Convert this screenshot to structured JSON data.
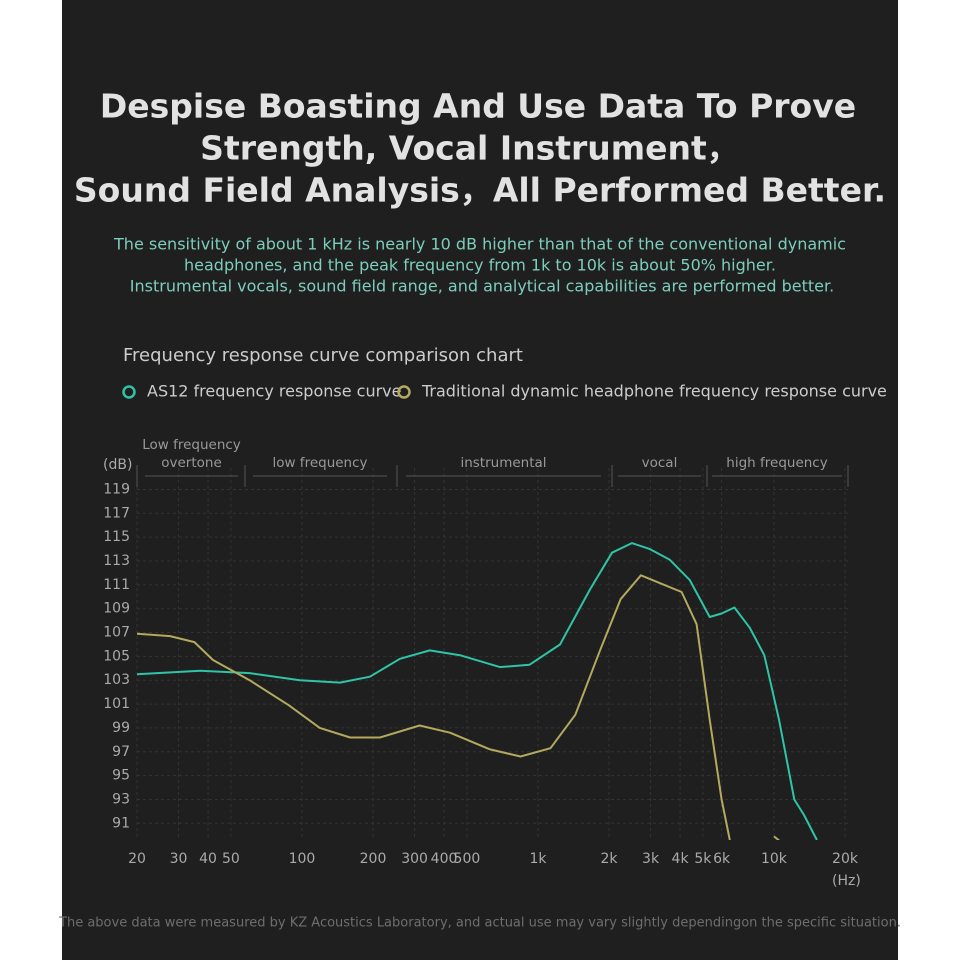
{
  "chart_data": {
    "type": "line",
    "title": [
      "Despise Boasting And Use Data To Prove",
      "Strength, Vocal Instrument，",
      "Sound Field Analysis，All Performed Better."
    ],
    "subtitle": [
      "The sensitivity of about 1 kHz is nearly 10 dB higher than that of the conventional dynamic",
      "headphones, and the peak frequency from 1k to 10k is about 50% higher.",
      "Instrumental vocals, sound field range, and analytical capabilities are performed better."
    ],
    "chart_title": "Frequency response curve comparison chart",
    "y_label": "(dB)",
    "x_label": "(Hz)",
    "bands": [
      [
        "Low frequency",
        "overtone"
      ],
      [
        "low frequency"
      ],
      [
        "instrumental"
      ],
      [
        "vocal"
      ],
      [
        "high frequency"
      ]
    ],
    "footnote": "The above data were measured by KZ Acoustics Laboratory, and actual use may vary slightly dependingon the specific situation.",
    "x_log": true,
    "grid": true,
    "xlim": [
      20,
      20000
    ],
    "ylim": [
      89.6,
      120.8
    ],
    "xticks": [
      20,
      30,
      40,
      50,
      100,
      200,
      300,
      400,
      500,
      {
        "value": 1000,
        "label": "1k"
      },
      {
        "value": 2000,
        "label": "2k"
      },
      {
        "value": 3000,
        "label": "3k"
      },
      {
        "value": 4000,
        "label": "4k"
      },
      {
        "value": 5000,
        "label": "5k"
      },
      {
        "value": 6000,
        "label": "6k"
      },
      {
        "value": 10000,
        "label": "10k"
      },
      {
        "value": 20000,
        "label": "20k"
      }
    ],
    "yticks": [
      91,
      93,
      95,
      97,
      99,
      101,
      103,
      105,
      107,
      109,
      111,
      113,
      115,
      117,
      119
    ],
    "series": [
      {
        "name": "AS12 frequency response curve",
        "color": "#2fc4a8",
        "x": [
          20,
          37,
          60,
          98,
          145,
          194,
          260,
          348,
          467,
          690,
          922,
          1240,
          1660,
          2060,
          2500,
          2980,
          3620,
          4400,
          5340,
          6000,
          6800,
          7900,
          9100,
          10500,
          12200,
          13400,
          15200
        ],
        "values": [
          103.5,
          103.8,
          103.6,
          103.0,
          102.8,
          103.3,
          104.8,
          105.5,
          105.1,
          104.1,
          104.3,
          106.0,
          110.6,
          113.7,
          114.5,
          114.0,
          113.1,
          111.4,
          108.3,
          108.6,
          109.1,
          107.4,
          105.1,
          99.7,
          93.0,
          91.7,
          89.6
        ]
      },
      {
        "name": "Traditional dynamic headphone frequency response curve",
        "color": "#b3aa5e",
        "x": [
          20,
          27.6,
          35,
          42,
          60,
          88,
          119,
          160,
          214,
          315,
          424,
          627,
          843,
          1130,
          1440,
          1840,
          2240,
          2730,
          3330,
          4060,
          4700,
          5340,
          6000,
          6500,
          9700,
          10000,
          10600
        ],
        "values": [
          106.9,
          106.7,
          106.2,
          104.7,
          103.0,
          100.9,
          99.0,
          98.2,
          98.2,
          99.2,
          98.6,
          97.2,
          96.6,
          97.3,
          100.1,
          105.6,
          109.8,
          111.8,
          111.1,
          110.4,
          107.7,
          99.7,
          93.0,
          89.6,
          null,
          89.9,
          89.5
        ]
      }
    ]
  }
}
